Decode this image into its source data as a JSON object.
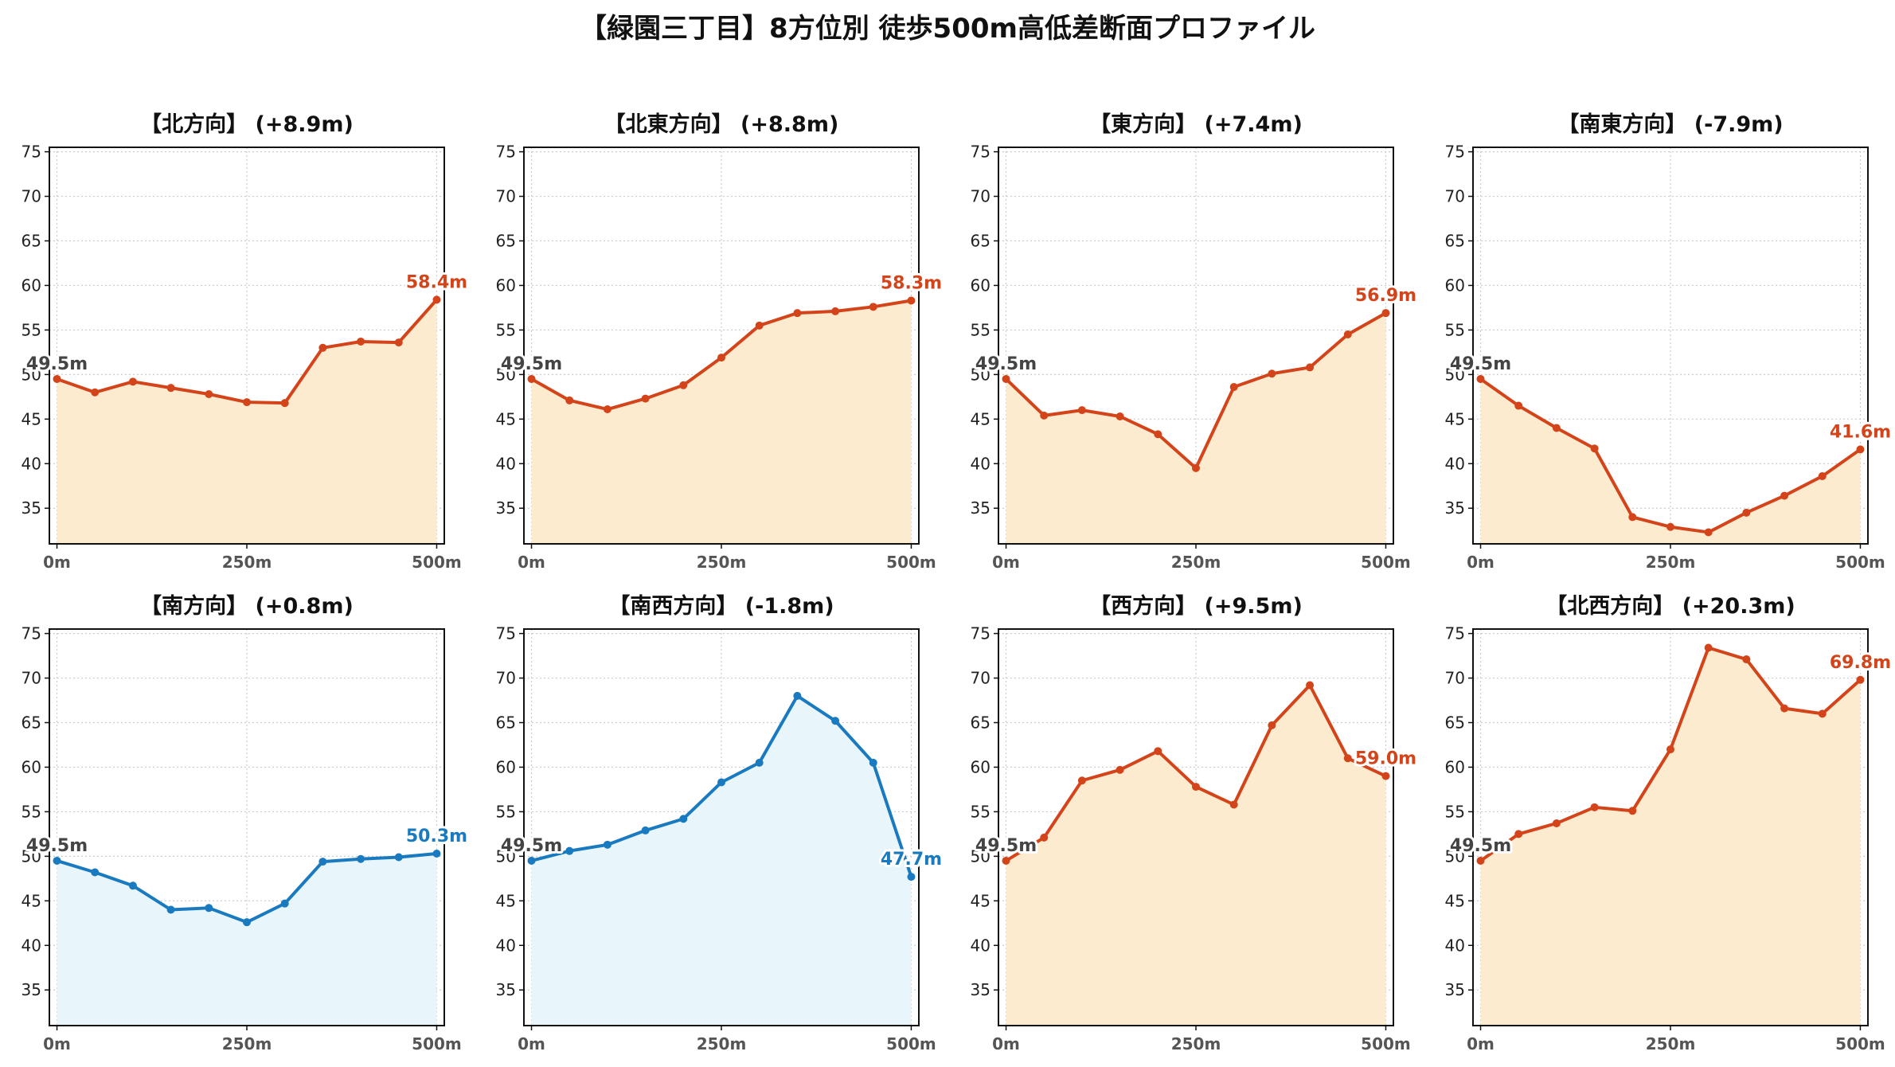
{
  "title": "【緑園三丁目】8方位別 徒歩500m高低差断面プロファイル",
  "colors": {
    "up_line": "#d4441a",
    "up_fill": "#fdebd0",
    "down_line": "#1a7abf",
    "down_fill": "#e8f6fc",
    "start_label": "#444444"
  },
  "chart_data": [
    {
      "type": "area",
      "title": "【北方向】 (+8.9m)",
      "trend": "up",
      "x": [
        0,
        50,
        100,
        150,
        200,
        250,
        300,
        350,
        400,
        450,
        500
      ],
      "values": [
        49.5,
        48.0,
        49.2,
        48.5,
        47.8,
        46.9,
        46.8,
        53.0,
        53.7,
        53.6,
        58.4
      ],
      "start_label": "49.5m",
      "end_label": "58.4m",
      "xticks": [
        "0m",
        "250m",
        "500m"
      ],
      "yticks": [
        "35",
        "40",
        "45",
        "50",
        "55",
        "60",
        "65",
        "70",
        "75"
      ],
      "ylim": [
        31,
        75.5
      ],
      "xlim": [
        -10,
        510
      ],
      "grid": true
    },
    {
      "type": "area",
      "title": "【北東方向】 (+8.8m)",
      "trend": "up",
      "x": [
        0,
        50,
        100,
        150,
        200,
        250,
        300,
        350,
        400,
        450,
        500
      ],
      "values": [
        49.5,
        47.1,
        46.1,
        47.3,
        48.8,
        51.9,
        55.5,
        56.9,
        57.1,
        57.6,
        58.3
      ],
      "start_label": "49.5m",
      "end_label": "58.3m",
      "xticks": [
        "0m",
        "250m",
        "500m"
      ],
      "yticks": [
        "35",
        "40",
        "45",
        "50",
        "55",
        "60",
        "65",
        "70",
        "75"
      ],
      "ylim": [
        31,
        75.5
      ],
      "xlim": [
        -10,
        510
      ],
      "grid": true
    },
    {
      "type": "area",
      "title": "【東方向】 (+7.4m)",
      "trend": "up",
      "x": [
        0,
        50,
        100,
        150,
        200,
        250,
        300,
        350,
        400,
        450,
        500
      ],
      "values": [
        49.5,
        45.4,
        46.0,
        45.3,
        43.3,
        39.5,
        48.6,
        50.1,
        50.8,
        54.5,
        56.9
      ],
      "start_label": "49.5m",
      "end_label": "56.9m",
      "xticks": [
        "0m",
        "250m",
        "500m"
      ],
      "yticks": [
        "35",
        "40",
        "45",
        "50",
        "55",
        "60",
        "65",
        "70",
        "75"
      ],
      "ylim": [
        31,
        75.5
      ],
      "xlim": [
        -10,
        510
      ],
      "grid": true
    },
    {
      "type": "area",
      "title": "【南東方向】 (-7.9m)",
      "trend": "up",
      "x": [
        0,
        50,
        100,
        150,
        200,
        250,
        300,
        350,
        400,
        450,
        500
      ],
      "values": [
        49.5,
        46.5,
        44.0,
        41.7,
        34.0,
        32.9,
        32.3,
        34.5,
        36.4,
        38.6,
        41.6
      ],
      "start_label": "49.5m",
      "end_label": "41.6m",
      "xticks": [
        "0m",
        "250m",
        "500m"
      ],
      "yticks": [
        "35",
        "40",
        "45",
        "50",
        "55",
        "60",
        "65",
        "70",
        "75"
      ],
      "ylim": [
        31,
        75.5
      ],
      "xlim": [
        -10,
        510
      ],
      "grid": true
    },
    {
      "type": "area",
      "title": "【南方向】 (+0.8m)",
      "trend": "down",
      "x": [
        0,
        50,
        100,
        150,
        200,
        250,
        300,
        350,
        400,
        450,
        500
      ],
      "values": [
        49.5,
        48.2,
        46.7,
        44.0,
        44.2,
        42.6,
        44.7,
        49.4,
        49.7,
        49.9,
        50.3
      ],
      "start_label": "49.5m",
      "end_label": "50.3m",
      "xticks": [
        "0m",
        "250m",
        "500m"
      ],
      "yticks": [
        "35",
        "40",
        "45",
        "50",
        "55",
        "60",
        "65",
        "70",
        "75"
      ],
      "ylim": [
        31,
        75.5
      ],
      "xlim": [
        -10,
        510
      ],
      "grid": true
    },
    {
      "type": "area",
      "title": "【南西方向】 (-1.8m)",
      "trend": "down",
      "x": [
        0,
        50,
        100,
        150,
        200,
        250,
        300,
        350,
        400,
        450,
        500
      ],
      "values": [
        49.5,
        50.6,
        51.3,
        52.9,
        54.2,
        58.3,
        60.5,
        68.0,
        65.2,
        60.5,
        47.7
      ],
      "start_label": "49.5m",
      "end_label": "47.7m",
      "xticks": [
        "0m",
        "250m",
        "500m"
      ],
      "yticks": [
        "35",
        "40",
        "45",
        "50",
        "55",
        "60",
        "65",
        "70",
        "75"
      ],
      "ylim": [
        31,
        75.5
      ],
      "xlim": [
        -10,
        510
      ],
      "grid": true
    },
    {
      "type": "area",
      "title": "【西方向】 (+9.5m)",
      "trend": "up",
      "x": [
        0,
        50,
        100,
        150,
        200,
        250,
        300,
        350,
        400,
        450,
        500
      ],
      "values": [
        49.5,
        52.1,
        58.5,
        59.7,
        61.8,
        57.8,
        55.8,
        64.7,
        69.2,
        61.0,
        59.0
      ],
      "start_label": "49.5m",
      "end_label": "59.0m",
      "xticks": [
        "0m",
        "250m",
        "500m"
      ],
      "yticks": [
        "35",
        "40",
        "45",
        "50",
        "55",
        "60",
        "65",
        "70",
        "75"
      ],
      "ylim": [
        31,
        75.5
      ],
      "xlim": [
        -10,
        510
      ],
      "grid": true
    },
    {
      "type": "area",
      "title": "【北西方向】 (+20.3m)",
      "trend": "up",
      "x": [
        0,
        50,
        100,
        150,
        200,
        250,
        300,
        350,
        400,
        450,
        500
      ],
      "values": [
        49.5,
        52.5,
        53.7,
        55.5,
        55.1,
        62.0,
        73.4,
        72.1,
        66.6,
        66.0,
        69.8
      ],
      "start_label": "49.5m",
      "end_label": "69.8m",
      "xticks": [
        "0m",
        "250m",
        "500m"
      ],
      "yticks": [
        "35",
        "40",
        "45",
        "50",
        "55",
        "60",
        "65",
        "70",
        "75"
      ],
      "ylim": [
        31,
        75.5
      ],
      "xlim": [
        -10,
        510
      ],
      "grid": true
    }
  ]
}
